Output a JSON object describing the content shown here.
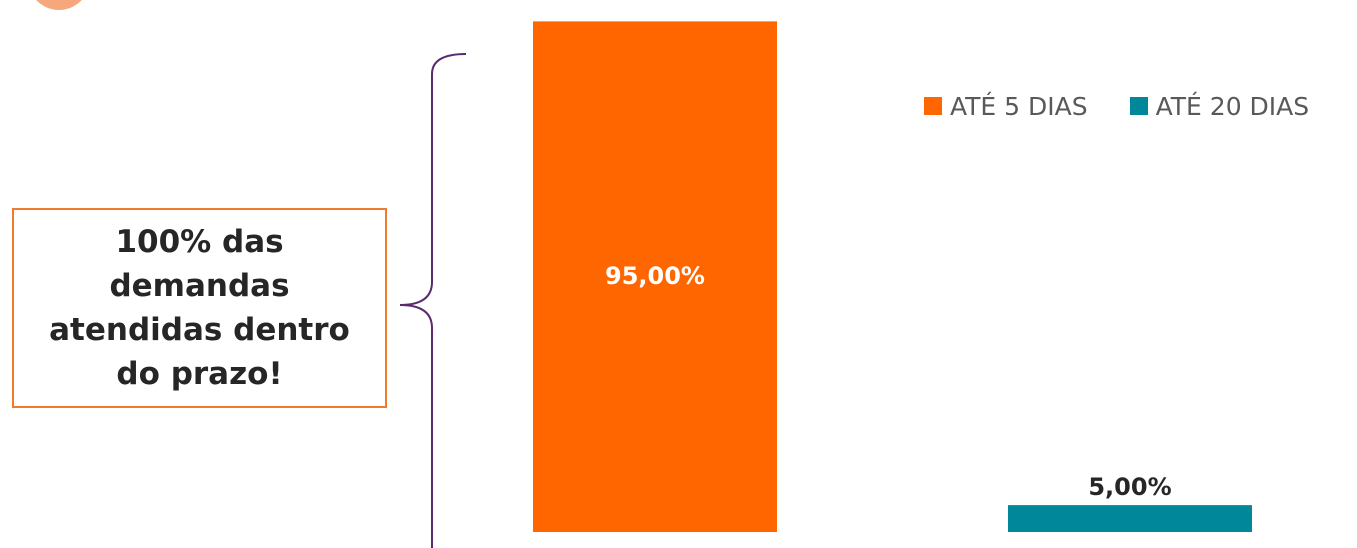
{
  "callout": {
    "text": "100% das demandas atendidas dentro do prazo!"
  },
  "colors": {
    "accent": "#ff6600",
    "teal": "#00889a",
    "brace": "#5b2a6e",
    "callout_border": "#f07c2b"
  },
  "chart_data": {
    "type": "bar",
    "categories": [
      "ATÉ 5 DIAS",
      "ATÉ 20 DIAS"
    ],
    "values": [
      95,
      5
    ],
    "data_labels": [
      "95,00%",
      "5,00%"
    ],
    "ylim": [
      0,
      100
    ],
    "grid": false,
    "legend": {
      "position": "top-right",
      "entries": [
        {
          "name": "ATÉ 5 DIAS",
          "color": "#ff6600"
        },
        {
          "name": "ATÉ 20 DIAS",
          "color": "#00889a"
        }
      ]
    },
    "title": "",
    "xlabel": "",
    "ylabel": ""
  }
}
